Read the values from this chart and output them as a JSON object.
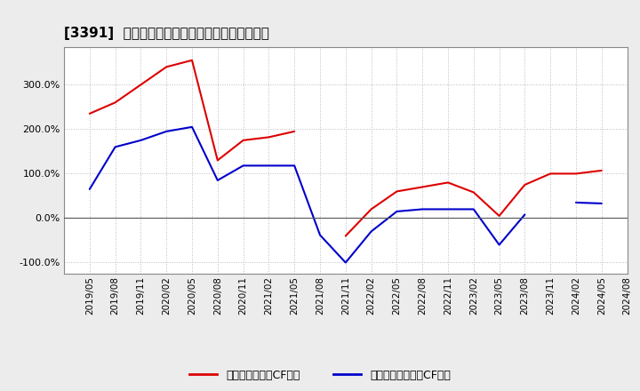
{
  "title": "[3391]  有利子負債キャッシュフロー比率の推移",
  "x_labels": [
    "2019/05",
    "2019/08",
    "2019/11",
    "2020/02",
    "2020/05",
    "2020/08",
    "2020/11",
    "2021/02",
    "2021/05",
    "2021/08",
    "2021/11",
    "2022/02",
    "2022/05",
    "2022/08",
    "2022/11",
    "2023/02",
    "2023/05",
    "2023/08",
    "2023/11",
    "2024/02",
    "2024/05",
    "2024/08"
  ],
  "red_values": [
    235,
    260,
    300,
    340,
    355,
    130,
    175,
    182,
    195,
    null,
    -40,
    20,
    60,
    70,
    80,
    58,
    5,
    75,
    100,
    100,
    107,
    null
  ],
  "blue_values": [
    65,
    160,
    175,
    195,
    205,
    85,
    118,
    118,
    118,
    -38,
    -100,
    -30,
    15,
    20,
    20,
    20,
    -60,
    8,
    null,
    35,
    33,
    null
  ],
  "red_label": "有利子負債営業CF比率",
  "blue_label": "有利子負債フリーCF比率",
  "ylim": [
    -125,
    385
  ],
  "yticks": [
    -100,
    0,
    100,
    200,
    300
  ],
  "ytick_labels": [
    "-100.0%",
    "0.0%",
    "100.0%",
    "200.0%",
    "300.0%"
  ],
  "bg_color": "#ececec",
  "plot_bg_color": "#ffffff",
  "red_color": "#dd0000",
  "blue_color": "#0000cc",
  "grid_color": "#bbbbbb",
  "title_fontsize": 11,
  "linewidth": 1.5,
  "legend_fontsize": 9,
  "tick_fontsize": 8
}
